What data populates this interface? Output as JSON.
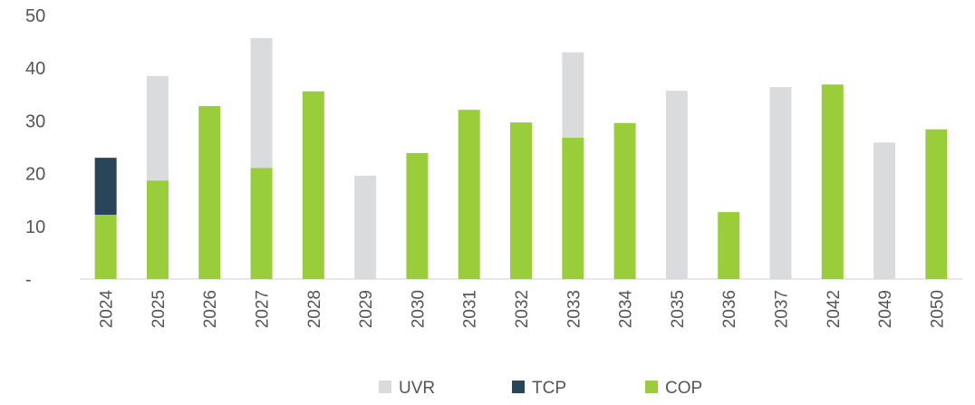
{
  "chart_data": {
    "type": "stacked_bar",
    "categories": [
      "2024",
      "2025",
      "2026",
      "2027",
      "2028",
      "2029",
      "2030",
      "2031",
      "2032",
      "2033",
      "2034",
      "2035",
      "2036",
      "2037",
      "2042",
      "2049",
      "2050"
    ],
    "series": [
      {
        "name": "UVR",
        "color": "#d9dbdd",
        "values": [
          null,
          19.8,
          null,
          24.6,
          null,
          19.6,
          null,
          null,
          null,
          16.2,
          null,
          35.7,
          null,
          36.4,
          null,
          25.9,
          null
        ]
      },
      {
        "name": "TCP",
        "color": "#2a4559",
        "values": [
          10.8,
          null,
          null,
          null,
          null,
          null,
          null,
          null,
          null,
          null,
          null,
          null,
          null,
          null,
          null,
          null,
          null
        ]
      },
      {
        "name": "COP",
        "color": "#9acd3a",
        "values": [
          12.2,
          18.7,
          32.8,
          21.1,
          35.6,
          null,
          23.9,
          32.1,
          29.7,
          26.8,
          29.6,
          null,
          12.7,
          null,
          36.9,
          null,
          28.4
        ]
      }
    ],
    "ylim": [
      0,
      50
    ],
    "yticks": [
      {
        "value": 0,
        "label": "-"
      },
      10,
      20,
      30,
      40,
      50
    ]
  }
}
